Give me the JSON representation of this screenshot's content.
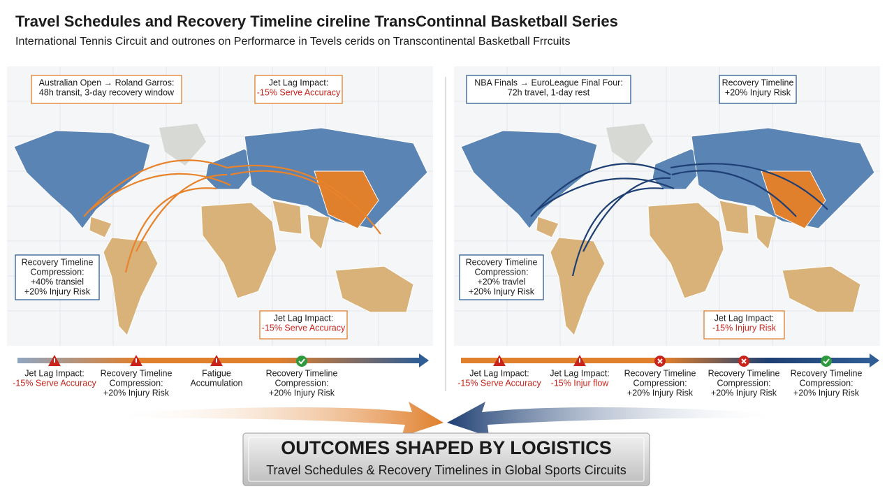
{
  "header": {
    "title": "Travel Schedules and Recovery Timeline cireline TransContinnal Basketball Series",
    "subtitle": "International Tennis Circuit and outrones on Performarce in Tevels cerids on Transcontinental Basketball Frrcuits"
  },
  "panels": [
    {
      "callouts": [
        {
          "lines": [
            "Australian Open → Roland Garros:",
            "48h transit, 3-day recovery window"
          ]
        },
        {
          "lines": [
            "Jet Lag Impact:",
            "-15% Serve Accuracy"
          ]
        },
        {
          "lines": [
            "Recovery Timeline",
            "Compression:",
            "+40% transiel",
            "+20% Injury Risk"
          ]
        },
        {
          "lines": [
            "Jet Lag Impact:",
            "-15% Serve Accuracy"
          ]
        }
      ],
      "timeline": [
        {
          "icon": "warning",
          "lines": [
            "Jet Lag Impact:",
            "-15% Serve Accuracy"
          ]
        },
        {
          "icon": "warning",
          "lines": [
            "Recovery Timeline",
            "Compression:",
            "+20% Injury Risk"
          ]
        },
        {
          "icon": "warning",
          "lines": [
            "Fatigue",
            "Accumulation"
          ]
        },
        {
          "icon": "check",
          "lines": [
            "Recovery Timeline",
            "Compression:",
            "+20% Injury Risk"
          ]
        }
      ]
    },
    {
      "callouts": [
        {
          "lines": [
            "NBA Finals → EuroLeague Final Four:",
            "72h travel, 1-day rest"
          ]
        },
        {
          "lines": [
            "Recovery Timeline",
            "+20% Injury Risk"
          ]
        },
        {
          "lines": [
            "Recovery Timeline",
            "Compression:",
            "+20% travlel",
            "+20% Injury Risk"
          ]
        },
        {
          "lines": [
            "Jet Lag Impact:",
            "-15% Injury Risk"
          ]
        }
      ],
      "timeline": [
        {
          "icon": "warning",
          "lines": [
            "Jet Lag Impact:",
            "-15% Serve Accuracy"
          ]
        },
        {
          "icon": "warning",
          "lines": [
            "Jet Lag Impact:",
            "-15% Injur flow"
          ]
        },
        {
          "icon": "cross",
          "lines": [
            "Recovery Timeline",
            "Compression:",
            "+20% Injury Risk"
          ]
        },
        {
          "icon": "cross",
          "lines": [
            "Recovery Timeline",
            "Compression:",
            "+20% Injury Risk"
          ]
        },
        {
          "icon": "check",
          "lines": [
            "Recovery Timeline",
            "Compression:",
            "+20% Injury Risk"
          ]
        }
      ]
    }
  ],
  "banner": {
    "title": "OUTCOMES SHAPED BY LOGISTICS",
    "subtitle": "Travel Schedules & Recovery Timelines in Global Sports Circuits"
  }
}
